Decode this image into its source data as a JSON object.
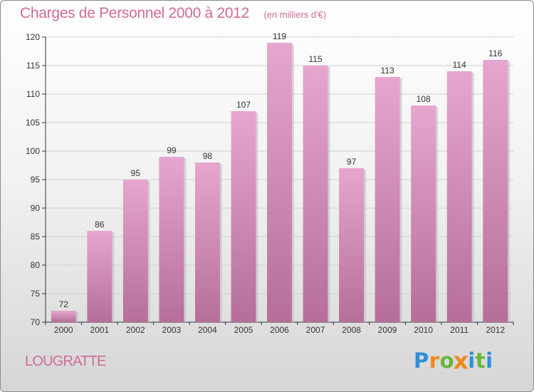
{
  "chart_data": {
    "type": "bar",
    "title": "Charges de Personnel 2000 à 2012",
    "subtitle": "(en milliers d'€)",
    "categories": [
      "2000",
      "2001",
      "2002",
      "2003",
      "2004",
      "2005",
      "2006",
      "2007",
      "2008",
      "2009",
      "2010",
      "2011",
      "2012"
    ],
    "values": [
      72,
      86,
      95,
      99,
      98,
      107,
      119,
      115,
      97,
      113,
      108,
      114,
      116
    ],
    "ylim": [
      70,
      120
    ],
    "yticks": [
      70,
      75,
      80,
      85,
      90,
      95,
      100,
      105,
      110,
      115,
      120
    ],
    "grid": true,
    "xlabel": "",
    "ylabel": "",
    "bar_color_top": "#e6a6cf",
    "bar_color_bottom": "#b56f98"
  },
  "location": "LOUGRATTE",
  "logo": {
    "text": "Proxiti",
    "letters": [
      {
        "ch": "P",
        "color": "#2f8fd6"
      },
      {
        "ch": "r",
        "color": "#f08a1c"
      },
      {
        "ch": "o",
        "color": "#6bb53a"
      },
      {
        "ch": "x",
        "color": "#f08a1c"
      },
      {
        "ch": "i",
        "color": "#2f8fd6"
      },
      {
        "ch": "t",
        "color": "#6bb53a"
      },
      {
        "ch": "i",
        "color": "#2f8fd6"
      }
    ]
  }
}
